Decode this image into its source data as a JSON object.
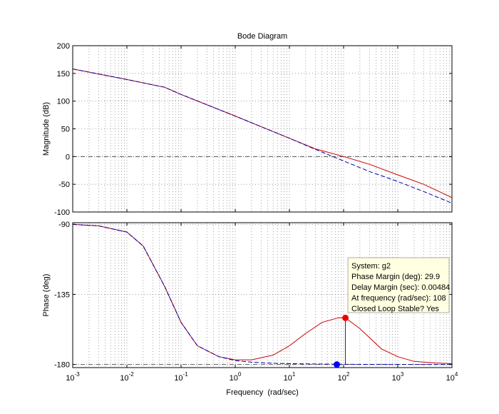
{
  "chart_data": [
    {
      "type": "line",
      "title": "Bode Diagram",
      "ylabel": "Magnitude (dB)",
      "xscale": "log",
      "xlim": [
        0.001,
        10000
      ],
      "ylim": [
        -100,
        200
      ],
      "yticks": [
        -100,
        -50,
        0,
        50,
        100,
        150,
        200
      ],
      "grid": true,
      "reference_line_y": 0,
      "series": [
        {
          "color": "#cc0000",
          "style": "solid",
          "x": [
            0.001,
            0.01,
            0.05,
            0.1,
            1,
            10,
            30,
            100,
            300,
            1000,
            3000,
            10000
          ],
          "y": [
            158,
            139,
            125,
            112,
            73,
            33,
            14,
            0,
            -14,
            -33,
            -50,
            -74
          ]
        },
        {
          "color": "#0000aa",
          "style": "dashed",
          "x": [
            0.001,
            0.01,
            0.05,
            0.1,
            1,
            10,
            30,
            100,
            300,
            1000,
            3000,
            10000
          ],
          "y": [
            158,
            139,
            125,
            112,
            73,
            33,
            13,
            -8,
            -27,
            -45,
            -63,
            -84
          ]
        }
      ]
    },
    {
      "type": "line",
      "xlabel": "Frequency  (rad/sec)",
      "ylabel": "Phase (deg)",
      "xscale": "log",
      "xlim": [
        0.001,
        10000
      ],
      "ylim": [
        -182,
        -89
      ],
      "yticks": [
        -90,
        -135,
        -180
      ],
      "xticks": [
        "10^-3",
        "10^-2",
        "10^-1",
        "10^0",
        "10^1",
        "10^2",
        "10^3",
        "10^4"
      ],
      "grid": true,
      "reference_line_y": -180,
      "series": [
        {
          "color": "#cc0000",
          "style": "solid",
          "x": [
            0.001,
            0.003,
            0.01,
            0.02,
            0.05,
            0.1,
            0.2,
            0.5,
            1,
            2,
            5,
            10,
            20,
            40,
            80,
            108,
            200,
            500,
            1000,
            2000,
            5000,
            10000
          ],
          "y": [
            -90.1,
            -91,
            -95,
            -104,
            -130,
            -153,
            -168,
            -175,
            -177,
            -177,
            -174,
            -168,
            -160,
            -153,
            -150,
            -150.1,
            -157,
            -170,
            -175,
            -178,
            -179,
            -179.5
          ]
        },
        {
          "color": "#0000aa",
          "style": "dashed",
          "x": [
            0.001,
            0.003,
            0.01,
            0.02,
            0.05,
            0.1,
            0.2,
            0.5,
            1,
            2,
            5,
            10,
            100,
            1000,
            10000
          ],
          "y": [
            -90.1,
            -91,
            -95,
            -104,
            -130,
            -153,
            -168,
            -175,
            -177.5,
            -178.5,
            -179.2,
            -179.5,
            -179.9,
            -180,
            -180
          ]
        }
      ],
      "markers": [
        {
          "color": "#ee0000",
          "x": 108,
          "y": -150.1
        },
        {
          "color": "#0000ff",
          "x": 75,
          "y": -180
        }
      ]
    }
  ],
  "datatip": {
    "lines": [
      "System: g2",
      "Phase Margin (deg): 29.9",
      "Delay Margin (sec): 0.00484",
      "At frequency (rad/sec): 108",
      "Closed Loop Stable? Yes"
    ]
  }
}
